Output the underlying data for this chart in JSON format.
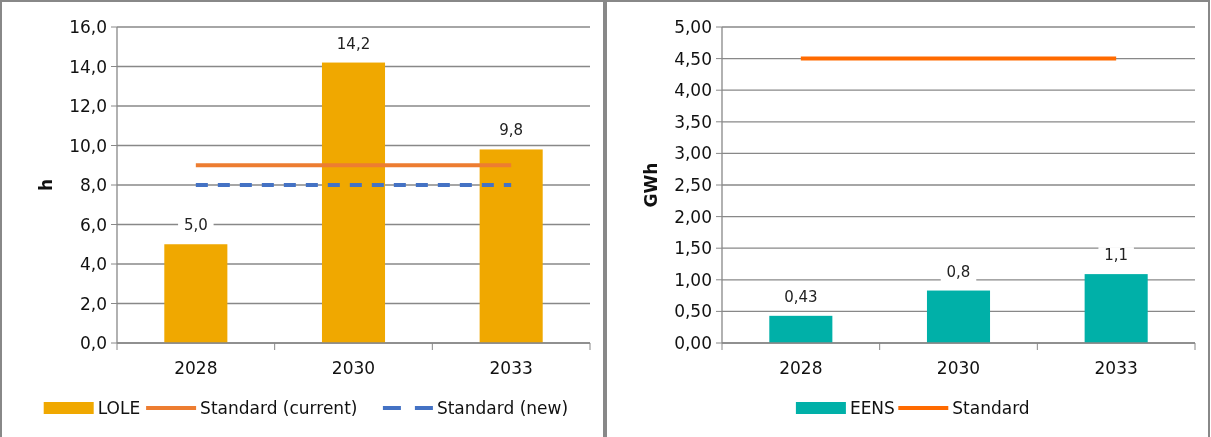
{
  "chart_data": [
    {
      "type": "bar",
      "ylabel": "h",
      "categories": [
        "2028",
        "2030",
        "2033"
      ],
      "ylim": [
        0,
        16
      ],
      "yticks": [
        {
          "value": 0,
          "label": "0,0"
        },
        {
          "value": 2,
          "label": "2,0"
        },
        {
          "value": 4,
          "label": "4,0"
        },
        {
          "value": 6,
          "label": "6,0"
        },
        {
          "value": 8,
          "label": "8,0"
        },
        {
          "value": 10,
          "label": "10,0"
        },
        {
          "value": 12,
          "label": "12,0"
        },
        {
          "value": 14,
          "label": "14,0"
        },
        {
          "value": 16,
          "label": "16,0"
        }
      ],
      "grid": "y",
      "legend": "bottom",
      "series": [
        {
          "name": "LOLE",
          "color": "#f0a800",
          "values": [
            5.0,
            14.2,
            9.8
          ],
          "value_labels": [
            "5,0",
            "14,2",
            "9,8"
          ]
        },
        {
          "name": "Standard (current)",
          "type": "line",
          "color": "#ed7d31",
          "line_style": "solid",
          "values": [
            9,
            9,
            9
          ]
        },
        {
          "name": "Standard (new)",
          "type": "line",
          "color": "#4472c4",
          "line_style": "dashed",
          "values": [
            8,
            8,
            8
          ]
        }
      ]
    },
    {
      "type": "bar",
      "ylabel": "GWh",
      "categories": [
        "2028",
        "2030",
        "2033"
      ],
      "ylim": [
        0,
        5
      ],
      "yticks": [
        {
          "value": 0,
          "label": "0,00"
        },
        {
          "value": 0.5,
          "label": "0,50"
        },
        {
          "value": 1,
          "label": "1,00"
        },
        {
          "value": 1.5,
          "label": "1,50"
        },
        {
          "value": 2,
          "label": "2,00"
        },
        {
          "value": 2.5,
          "label": "2,50"
        },
        {
          "value": 3,
          "label": "3,00"
        },
        {
          "value": 3.5,
          "label": "3,50"
        },
        {
          "value": 4,
          "label": "4,00"
        },
        {
          "value": 4.5,
          "label": "4,50"
        },
        {
          "value": 5,
          "label": "5,00"
        }
      ],
      "grid": "y",
      "legend": "bottom",
      "series": [
        {
          "name": "EENS",
          "color": "#00b0a8",
          "values": [
            0.43,
            0.83,
            1.09
          ],
          "value_labels": [
            "0,43",
            "0,8",
            "1,1"
          ]
        },
        {
          "name": "Standard",
          "type": "line",
          "color": "#ff6a00",
          "line_style": "solid",
          "values": [
            4.5,
            4.5,
            4.5
          ]
        }
      ]
    }
  ]
}
